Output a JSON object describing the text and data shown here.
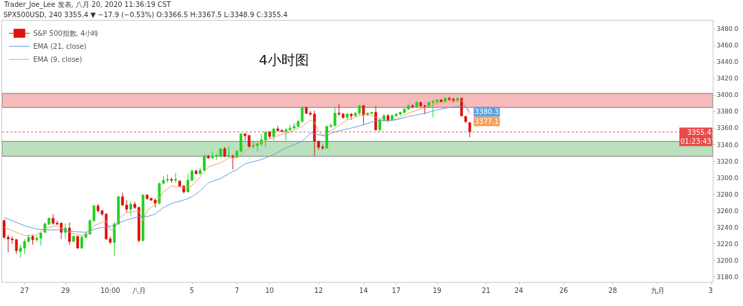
{
  "chart_data": {
    "type": "candlestick",
    "title": "4小时图",
    "annotations": [
      "Trader_Joe_Lee 发表, 八月 20, 2020 11:36:19 CST",
      "SPX500USD, 240 3355.4 ▼ −17.9 (−0.53%) O:3366.5 H:3367.5 L:3348.9 C:3355.4"
    ],
    "categories": [
      null,
      null,
      null,
      null,
      null,
      "27",
      null,
      null,
      null,
      null,
      null,
      null,
      null,
      null,
      null,
      "29",
      null,
      null,
      null,
      null,
      null,
      null,
      null,
      null,
      null,
      null,
      "10:00",
      null,
      null,
      null,
      null,
      null,
      null,
      "八月",
      null,
      null,
      null,
      null,
      null,
      null,
      null,
      null,
      null,
      null,
      null,
      null,
      "5",
      null,
      null,
      null,
      null,
      null,
      null,
      null,
      null,
      null,
      null,
      "7",
      null,
      null,
      null,
      null,
      null,
      null,
      null,
      "10",
      null,
      null,
      null,
      null,
      null,
      null,
      null,
      null,
      null,
      null,
      null,
      "12",
      null,
      null,
      null,
      null,
      null,
      null,
      null,
      null,
      null,
      null,
      "14",
      null,
      null,
      null,
      null,
      null,
      null,
      null,
      "17",
      null,
      null,
      null,
      null,
      null,
      null,
      null,
      null,
      null,
      "19",
      null,
      null,
      null,
      null,
      null,
      null,
      null,
      null,
      null,
      null,
      null,
      "21",
      null,
      null,
      null,
      null,
      null,
      null,
      null,
      "24",
      null,
      null,
      null,
      null,
      null,
      null,
      null,
      null,
      null,
      null,
      "26",
      null,
      null,
      null,
      null,
      null,
      null,
      null,
      null,
      null,
      null,
      null,
      "28",
      null,
      null,
      null,
      null,
      null,
      null,
      null,
      null,
      null,
      null,
      "九月",
      null,
      null,
      null,
      null,
      null,
      null,
      null,
      null,
      null,
      null,
      null,
      null,
      "3"
    ],
    "series": [
      {
        "name": "EMA (9, close)",
        "type": "line",
        "color": "#f5a05a",
        "values": [
          3240,
          null,
          null,
          null,
          null,
          3230,
          null,
          null,
          3231,
          null,
          3239,
          null,
          null,
          3242,
          null,
          null,
          3234,
          null,
          null,
          3230,
          null,
          3234,
          3242,
          null,
          3246,
          3248,
          3237,
          3237,
          3250,
          null,
          3258,
          null,
          null,
          3260,
          3248,
          3260,
          null,
          3268,
          null,
          3283,
          null,
          3290,
          null,
          null,
          3288,
          null,
          3290,
          null,
          3301,
          null,
          3313,
          null,
          null,
          3318,
          null,
          3324,
          null,
          3324,
          null,
          null,
          null,
          3340,
          null,
          null,
          3345,
          null,
          null,
          3351,
          null,
          null,
          3355,
          null,
          null,
          3362,
          null,
          3370,
          3367,
          3356,
          3351,
          3354,
          null,
          3360,
          null,
          null,
          3370,
          null,
          null,
          3375,
          null,
          3377,
          null,
          3373,
          null,
          null,
          3369,
          null,
          3371,
          null,
          null,
          3378,
          null,
          null,
          null,
          3385,
          null,
          null,
          3390,
          null,
          null,
          3393,
          null,
          null,
          3394,
          3386,
          3377.1,
          null,
          null,
          null,
          null,
          null,
          null,
          null,
          null,
          null,
          null,
          null,
          null,
          null,
          null,
          null,
          null,
          null,
          null,
          null,
          null,
          null,
          null,
          null,
          null,
          null,
          null,
          null,
          null,
          null,
          null,
          null,
          null,
          null,
          null,
          null,
          null,
          null,
          null,
          null,
          null,
          null,
          null,
          null,
          null,
          null,
          null,
          null,
          null,
          null,
          null,
          null,
          null,
          null,
          null,
          null,
          null,
          null,
          null,
          null
        ],
        "value_labels": [
          null,
          null,
          null,
          null,
          null,
          null,
          null,
          null,
          null,
          null,
          null,
          null,
          null,
          null,
          null,
          null,
          null,
          null,
          null,
          null,
          null,
          null,
          null,
          null,
          null,
          null,
          null,
          null,
          null,
          null,
          null,
          null,
          null,
          null,
          null,
          null,
          null,
          null,
          null,
          null,
          null,
          null,
          null,
          null,
          null,
          null,
          null,
          null,
          null,
          null,
          null,
          null,
          null,
          null,
          null,
          null,
          null,
          null,
          null,
          null,
          null,
          null,
          null,
          null,
          null,
          null,
          null,
          null,
          null,
          null,
          null,
          null,
          null,
          null,
          null,
          null,
          null,
          null,
          null,
          null,
          null,
          null,
          null,
          null,
          null,
          null,
          null,
          null,
          null,
          null,
          null,
          null,
          null,
          null,
          null,
          null,
          null,
          null,
          null,
          null,
          null,
          null,
          null,
          null,
          null,
          null,
          null,
          null,
          null,
          null,
          null,
          null,
          null,
          null,
          "3377.1",
          null,
          null,
          null,
          null,
          null,
          null,
          null,
          null,
          null,
          null,
          null,
          null,
          null,
          null,
          null,
          null,
          null,
          null,
          null,
          null,
          null,
          null,
          null,
          null,
          null,
          null,
          null,
          null,
          null,
          null,
          null,
          null,
          null,
          null,
          null,
          null,
          null,
          null,
          null,
          null,
          null,
          null,
          null,
          null,
          null,
          null,
          null,
          null,
          null,
          null,
          null,
          null,
          null,
          null,
          null,
          null,
          null,
          null,
          null
        ]
      },
      {
        "name": "EMA (21, close)",
        "type": "line",
        "color": "#5aa0e0",
        "values": [
          3252,
          null,
          null,
          null,
          null,
          3242,
          null,
          null,
          3238,
          null,
          3237,
          null,
          null,
          null,
          3237,
          null,
          null,
          3235,
          null,
          null,
          3234,
          null,
          null,
          3239,
          null,
          null,
          3241,
          null,
          3245,
          null,
          3249,
          null,
          null,
          3253,
          null,
          3253,
          null,
          3256,
          null,
          3264,
          null,
          3269,
          null,
          null,
          3273,
          null,
          3277,
          null,
          3284,
          null,
          3294,
          null,
          null,
          3299,
          null,
          3305,
          null,
          3310,
          null,
          3317,
          null,
          null,
          null,
          3322,
          null,
          null,
          3328,
          null,
          null,
          3336,
          null,
          null,
          null,
          3344,
          null,
          3354,
          null,
          3352,
          null,
          3350,
          3354,
          null,
          null,
          3358,
          null,
          3360,
          null,
          null,
          3364,
          null,
          null,
          3369,
          null,
          null,
          3369,
          null,
          3370,
          null,
          null,
          3374,
          null,
          null,
          null,
          3378,
          null,
          null,
          3382,
          null,
          null,
          3385,
          null,
          3386,
          null,
          3386,
          3380.3,
          null,
          null,
          null,
          null,
          null,
          null,
          null,
          null,
          null,
          null,
          null,
          null,
          null,
          null,
          null,
          null,
          null,
          null,
          null,
          null,
          null,
          null,
          null,
          null,
          null,
          null,
          null,
          null,
          null,
          null,
          null,
          null,
          null,
          null,
          null,
          null,
          null,
          null,
          null,
          null,
          null,
          null,
          null,
          null,
          null,
          null,
          null,
          null,
          null,
          null,
          null,
          null,
          null,
          null,
          null,
          null,
          null,
          null,
          null
        ],
        "value_labels": [
          null,
          null,
          null,
          null,
          null,
          null,
          null,
          null,
          null,
          null,
          null,
          null,
          null,
          null,
          null,
          null,
          null,
          null,
          null,
          null,
          null,
          null,
          null,
          null,
          null,
          null,
          null,
          null,
          null,
          null,
          null,
          null,
          null,
          null,
          null,
          null,
          null,
          null,
          null,
          null,
          null,
          null,
          null,
          null,
          null,
          null,
          null,
          null,
          null,
          null,
          null,
          null,
          null,
          null,
          null,
          null,
          null,
          null,
          null,
          null,
          null,
          null,
          null,
          null,
          null,
          null,
          null,
          null,
          null,
          null,
          null,
          null,
          null,
          null,
          null,
          null,
          null,
          null,
          null,
          null,
          null,
          null,
          null,
          null,
          null,
          null,
          null,
          null,
          null,
          null,
          null,
          null,
          null,
          null,
          null,
          null,
          null,
          null,
          null,
          null,
          null,
          null,
          null,
          null,
          null,
          null,
          null,
          null,
          null,
          null,
          null,
          null,
          null,
          null,
          "3380.3",
          null,
          null,
          null,
          null,
          null,
          null,
          null,
          null,
          null,
          null,
          null,
          null,
          null,
          null,
          null,
          null,
          null,
          null,
          null,
          null,
          null,
          null,
          null,
          null,
          null,
          null,
          null,
          null,
          null,
          null,
          null,
          null,
          null,
          null,
          null,
          null,
          null,
          null,
          null,
          null,
          null,
          null,
          null,
          null,
          null,
          null,
          null,
          null,
          null,
          null,
          null,
          null,
          null,
          null,
          null,
          null,
          null,
          null,
          null
        ]
      },
      {
        "name": "S&P 500指數, 4小時",
        "ohlc": [
          [
            3248,
            3250,
            3226,
            3228
          ],
          [
            3228,
            3231,
            3210,
            3226
          ],
          [
            3226,
            3229,
            3220,
            3225
          ],
          [
            3225,
            3226,
            3208,
            3212
          ],
          [
            3211,
            3219,
            3203,
            3215
          ],
          [
            3215,
            3226,
            3208,
            3223
          ],
          [
            3223,
            3231,
            3222,
            3228
          ],
          [
            3229,
            3231,
            3219,
            3225
          ],
          [
            3225,
            3230,
            3223,
            3227
          ],
          [
            3227,
            3234,
            3218,
            3233
          ],
          [
            3234,
            3246,
            3233,
            3244
          ],
          [
            3244,
            3252,
            3242,
            3251
          ],
          [
            3251,
            3256,
            3243,
            3245
          ],
          [
            3245,
            3248,
            3243,
            3244
          ],
          [
            3245,
            3246,
            3226,
            3234
          ],
          [
            3234,
            3245,
            3226,
            3239
          ],
          [
            3239,
            3246,
            3219,
            3223
          ],
          [
            3223,
            3231,
            3222,
            3229
          ],
          [
            3229,
            3230,
            3214,
            3215
          ],
          [
            3215,
            3230,
            3214,
            3228
          ],
          [
            3228,
            3235,
            3227,
            3232
          ],
          [
            3232,
            3250,
            3231,
            3248
          ],
          [
            3248,
            3267,
            3247,
            3266
          ],
          [
            3266,
            3268,
            3258,
            3260
          ],
          [
            3260,
            3261,
            3254,
            3256
          ],
          [
            3256,
            3257,
            3225,
            3226
          ],
          [
            3226,
            3229,
            3220,
            3222
          ],
          [
            3222,
            3246,
            3205,
            3244
          ],
          [
            3244,
            3278,
            3243,
            3277
          ],
          [
            3277,
            3282,
            3266,
            3267
          ],
          [
            3267,
            3273,
            3258,
            3262
          ],
          [
            3262,
            3271,
            3254,
            3268
          ],
          [
            3268,
            3271,
            3262,
            3264
          ],
          [
            3264,
            3265,
            3222,
            3224
          ],
          [
            3224,
            3280,
            3223,
            3279
          ],
          [
            3279,
            3280,
            3273,
            3275
          ],
          [
            3275,
            3276,
            3272,
            3273
          ],
          [
            3273,
            3275,
            3264,
            3269
          ],
          [
            3269,
            3294,
            3268,
            3293
          ],
          [
            3293,
            3302,
            3293,
            3297
          ],
          [
            3297,
            3304,
            3294,
            3298
          ],
          [
            3298,
            3300,
            3294,
            3297
          ],
          [
            3297,
            3306,
            3294,
            3298
          ],
          [
            3296,
            3297,
            3289,
            3290
          ],
          [
            3290,
            3291,
            3281,
            3283
          ],
          [
            3283,
            3305,
            3282,
            3297
          ],
          [
            3297,
            3310,
            3296,
            3308
          ],
          [
            3308,
            3310,
            3304,
            3305
          ],
          [
            3305,
            3312,
            3303,
            3309
          ],
          [
            3309,
            3328,
            3308,
            3326
          ],
          [
            3326,
            3328,
            3323,
            3324
          ],
          [
            3324,
            3332,
            3323,
            3326
          ],
          [
            3326,
            3329,
            3322,
            3327
          ],
          [
            3326,
            3336,
            3325,
            3335
          ],
          [
            3335,
            3337,
            3325,
            3326
          ],
          [
            3326,
            3338,
            3324,
            3327
          ],
          [
            3326,
            3328,
            3310,
            3325
          ],
          [
            3325,
            3333,
            3324,
            3332
          ],
          [
            3332,
            3354,
            3331,
            3353
          ],
          [
            3353,
            3354,
            3345,
            3351
          ],
          [
            3351,
            3352,
            3336,
            3338
          ],
          [
            3338,
            3345,
            3335,
            3339
          ],
          [
            3339,
            3343,
            3332,
            3341
          ],
          [
            3341,
            3353,
            3338,
            3346
          ],
          [
            3346,
            3356,
            3337,
            3355
          ],
          [
            3355,
            3357,
            3347,
            3350
          ],
          [
            3350,
            3360,
            3345,
            3359
          ],
          [
            3359,
            3363,
            3356,
            3357
          ],
          [
            3357,
            3359,
            3355,
            3356
          ],
          [
            3356,
            3360,
            3345,
            3358
          ],
          [
            3358,
            3364,
            3356,
            3360
          ],
          [
            3360,
            3366,
            3359,
            3362
          ],
          [
            3362,
            3370,
            3361,
            3368
          ],
          [
            3368,
            3386,
            3367,
            3385
          ],
          [
            3385,
            3386,
            3377,
            3378
          ],
          [
            3378,
            3381,
            3375,
            3377
          ],
          [
            3377,
            3381,
            3326,
            3344
          ],
          [
            3344,
            3345,
            3334,
            3337
          ],
          [
            3337,
            3340,
            3334,
            3336
          ],
          [
            3336,
            3363,
            3335,
            3362
          ],
          [
            3362,
            3366,
            3360,
            3363
          ],
          [
            3363,
            3385,
            3362,
            3378
          ],
          [
            3378,
            3389,
            3375,
            3377
          ],
          [
            3377,
            3378,
            3371,
            3373
          ],
          [
            3373,
            3378,
            3370,
            3377
          ],
          [
            3377,
            3378,
            3370,
            3375
          ],
          [
            3375,
            3379,
            3375,
            3378
          ],
          [
            3378,
            3388,
            3376,
            3387
          ],
          [
            3387,
            3388,
            3364,
            3376
          ],
          [
            3376,
            3379,
            3375,
            3378
          ],
          [
            3378,
            3380,
            3377,
            3379
          ],
          [
            3379,
            3387,
            3357,
            3358
          ],
          [
            3358,
            3371,
            3356,
            3370
          ],
          [
            3370,
            3377,
            3368,
            3375
          ],
          [
            3375,
            3377,
            3367,
            3370
          ],
          [
            3370,
            3377,
            3368,
            3375
          ],
          [
            3375,
            3378,
            3374,
            3377
          ],
          [
            3377,
            3380,
            3375,
            3379
          ],
          [
            3379,
            3384,
            3378,
            3383
          ],
          [
            3383,
            3389,
            3382,
            3387
          ],
          [
            3387,
            3389,
            3384,
            3386
          ],
          [
            3386,
            3393,
            3385,
            3391
          ],
          [
            3391,
            3392,
            3386,
            3387
          ],
          [
            3387,
            3388,
            3377,
            3386
          ],
          [
            3386,
            3392,
            3385,
            3391
          ],
          [
            3391,
            3394,
            3373,
            3392
          ],
          [
            3392,
            3395,
            3390,
            3394
          ],
          [
            3394,
            3395,
            3391,
            3392
          ],
          [
            3392,
            3398,
            3391,
            3396
          ],
          [
            3396,
            3398,
            3393,
            3395
          ],
          [
            3395,
            3397,
            3391,
            3393
          ],
          [
            3393,
            3397,
            3392,
            3396
          ],
          [
            3396,
            3397,
            3374,
            3375
          ],
          [
            3374,
            3375,
            3366,
            3368
          ],
          [
            3366.5,
            3367.5,
            3348.9,
            3355.4
          ],
          null,
          null,
          null,
          null,
          null,
          null,
          null,
          null,
          null,
          null,
          null,
          null,
          null,
          null,
          null,
          null,
          null,
          null,
          null,
          null,
          null,
          null,
          null,
          null,
          null,
          null,
          null,
          null,
          null,
          null,
          null,
          null,
          null,
          null,
          null,
          null,
          null,
          null,
          null,
          null,
          null,
          null,
          null,
          null,
          null,
          null,
          null,
          null,
          null,
          null,
          null,
          null,
          null,
          null,
          null,
          null,
          null,
          null,
          null
        ],
        "colors": [
          "#e01010",
          "#e01010",
          "#e01010",
          "#e01010",
          "#1ed21e",
          "#1ed21e",
          "#1ed21e",
          "#e01010",
          "#1ed21e",
          "#1ed21e",
          "#1ed21e",
          "#1ed21e",
          "#e01010",
          "#e01010",
          "#e01010",
          "#1ed21e",
          "#e01010",
          "#1ed21e",
          "#e01010",
          "#1ed21e",
          "#1ed21e",
          "#1ed21e",
          "#1ed21e",
          "#e01010",
          "#e01010",
          "#e01010",
          "#e01010",
          "#1ed21e",
          "#1ed21e",
          "#e01010",
          "#e01010",
          "#1ed21e",
          "#e01010",
          "#e01010",
          "#1ed21e",
          "#e01010",
          "#e01010",
          "#e01010",
          "#1ed21e",
          "#1ed21e",
          "#1ed21e",
          "#e01010",
          "#1ed21e",
          "#e01010",
          "#e01010",
          "#1ed21e",
          "#1ed21e",
          "#e01010",
          "#1ed21e",
          "#1ed21e",
          "#e01010",
          "#1ed21e",
          "#1ed21e",
          "#1ed21e",
          "#e01010",
          "#1ed21e",
          "#e01010",
          "#1ed21e",
          "#1ed21e",
          "#e01010",
          "#e01010",
          "#1ed21e",
          "#1ed21e",
          "#1ed21e",
          "#1ed21e",
          "#e01010",
          "#1ed21e",
          "#e01010",
          "#e01010",
          "#1ed21e",
          "#1ed21e",
          "#1ed21e",
          "#1ed21e",
          "#1ed21e",
          "#e01010",
          "#e01010",
          "#e01010",
          "#e01010",
          "#e01010",
          "#1ed21e",
          "#1ed21e",
          "#1ed21e",
          "#e01010",
          "#e01010",
          "#1ed21e",
          "#e01010",
          "#1ed21e",
          "#1ed21e",
          "#e01010",
          "#1ed21e",
          "#1ed21e",
          "#e01010",
          "#1ed21e",
          "#1ed21e",
          "#e01010",
          "#1ed21e",
          "#1ed21e",
          "#1ed21e",
          "#1ed21e",
          "#1ed21e",
          "#e01010",
          "#1ed21e",
          "#e01010",
          "#e01010",
          "#1ed21e",
          "#1ed21e",
          "#1ed21e",
          "#e01010",
          "#1ed21e",
          "#e01010",
          "#e01010",
          "#1ed21e",
          "#e01010",
          "#e01010",
          "#e01010",
          null,
          null,
          null,
          null,
          null,
          null,
          null,
          null,
          null,
          null,
          null,
          null,
          null,
          null,
          null,
          null,
          null,
          null,
          null,
          null,
          null,
          null,
          null,
          null,
          null,
          null,
          null,
          null,
          null,
          null,
          null,
          null,
          null,
          null,
          null,
          null,
          null,
          null,
          null,
          null,
          null,
          null,
          null,
          null,
          null,
          null,
          null,
          null,
          null,
          null,
          null,
          null,
          null,
          null,
          null,
          null,
          null,
          null,
          null
        ]
      }
    ],
    "ylim": [
      3174,
      3490
    ],
    "yticks": [
      {
        "value": 3180,
        "label": "3180.0"
      },
      {
        "value": 3200,
        "label": "3200.0"
      },
      {
        "value": 3220,
        "label": "3220.0"
      },
      {
        "value": 3240,
        "label": "3240.0"
      },
      {
        "value": 3260,
        "label": "3260.0"
      },
      {
        "value": 3280,
        "label": "3280.0"
      },
      {
        "value": 3300,
        "label": "3300.0"
      },
      {
        "value": 3320,
        "label": "3320.0"
      },
      {
        "value": 3340,
        "label": "3340.0"
      },
      {
        "value": 3360,
        "label": "3360.0"
      },
      {
        "value": 3380,
        "label": "3380.0"
      },
      {
        "value": 3400,
        "label": "3400.0"
      },
      {
        "value": 3420,
        "label": "3420.0"
      },
      {
        "value": 3440,
        "label": "3440.0"
      },
      {
        "value": 3460,
        "label": "3460.0"
      },
      {
        "value": 3480,
        "label": "3480.0"
      }
    ],
    "bands": [
      {
        "axis": "y",
        "from": 3385,
        "to": 3402,
        "color": "#f4a3a3"
      },
      {
        "axis": "y",
        "from": 3326,
        "to": 3344,
        "color": "#a5d6a7"
      }
    ],
    "ref_lines": [
      {
        "axis": "y",
        "value": 3355.4,
        "label": "3355.4\n01:23:43",
        "color": "#e84a4a",
        "line_style": "dotted"
      }
    ],
    "legend": "top left"
  }
}
